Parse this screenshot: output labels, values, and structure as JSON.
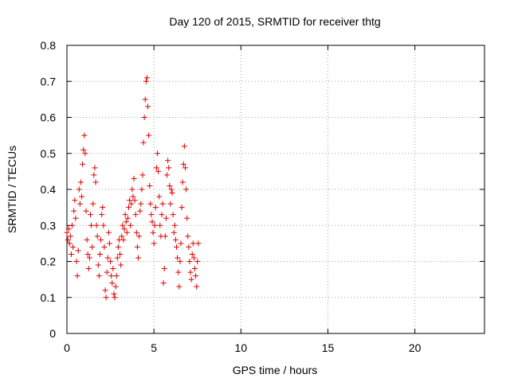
{
  "chart_data": {
    "type": "scatter",
    "title": "Day 120 of 2015, SRMTID for receiver thtg",
    "xlabel": "GPS time / hours",
    "ylabel": "SRMTID / TECUs",
    "xlim": [
      0,
      24
    ],
    "ylim": [
      0,
      0.8
    ],
    "xticks": [
      0,
      5,
      10,
      15,
      20
    ],
    "xtick_labels": [
      "0",
      "5",
      "10",
      "15",
      "20"
    ],
    "yticks": [
      0,
      0.1,
      0.2,
      0.3,
      0.4,
      0.5,
      0.6,
      0.7,
      0.8
    ],
    "ytick_labels": [
      "0",
      "0.1",
      "0.2",
      "0.3",
      "0.4",
      "0.5",
      "0.6",
      "0.7",
      "0.8"
    ],
    "grid": true,
    "marker": "+",
    "color": "#e00000",
    "series": [
      {
        "name": "SRMTID",
        "points": [
          [
            0.0,
            0.28
          ],
          [
            0.05,
            0.26
          ],
          [
            0.1,
            0.29
          ],
          [
            0.15,
            0.25
          ],
          [
            0.2,
            0.27
          ],
          [
            0.25,
            0.22
          ],
          [
            0.3,
            0.3
          ],
          [
            0.35,
            0.24
          ],
          [
            0.4,
            0.34
          ],
          [
            0.45,
            0.37
          ],
          [
            0.5,
            0.32
          ],
          [
            0.55,
            0.2
          ],
          [
            0.6,
            0.16
          ],
          [
            0.65,
            0.23
          ],
          [
            0.7,
            0.4
          ],
          [
            0.75,
            0.36
          ],
          [
            0.8,
            0.42
          ],
          [
            0.85,
            0.38
          ],
          [
            0.9,
            0.47
          ],
          [
            0.95,
            0.51
          ],
          [
            1.0,
            0.55
          ],
          [
            1.05,
            0.5
          ],
          [
            1.1,
            0.34
          ],
          [
            1.15,
            0.26
          ],
          [
            1.2,
            0.22
          ],
          [
            1.25,
            0.18
          ],
          [
            1.3,
            0.21
          ],
          [
            1.35,
            0.33
          ],
          [
            1.4,
            0.3
          ],
          [
            1.45,
            0.24
          ],
          [
            1.5,
            0.36
          ],
          [
            1.55,
            0.44
          ],
          [
            1.6,
            0.46
          ],
          [
            1.65,
            0.42
          ],
          [
            1.7,
            0.3
          ],
          [
            1.75,
            0.27
          ],
          [
            1.8,
            0.19
          ],
          [
            1.85,
            0.16
          ],
          [
            1.9,
            0.22
          ],
          [
            1.95,
            0.26
          ],
          [
            2.0,
            0.33
          ],
          [
            2.05,
            0.35
          ],
          [
            2.1,
            0.3
          ],
          [
            2.15,
            0.24
          ],
          [
            2.2,
            0.12
          ],
          [
            2.25,
            0.1
          ],
          [
            2.3,
            0.17
          ],
          [
            2.35,
            0.21
          ],
          [
            2.4,
            0.28
          ],
          [
            2.45,
            0.25
          ],
          [
            2.5,
            0.2
          ],
          [
            2.55,
            0.16
          ],
          [
            2.6,
            0.14
          ],
          [
            2.65,
            0.18
          ],
          [
            2.7,
            0.11
          ],
          [
            2.75,
            0.1
          ],
          [
            2.8,
            0.13
          ],
          [
            2.85,
            0.16
          ],
          [
            2.9,
            0.21
          ],
          [
            2.95,
            0.24
          ],
          [
            3.0,
            0.26
          ],
          [
            3.05,
            0.22
          ],
          [
            3.1,
            0.19
          ],
          [
            3.15,
            0.27
          ],
          [
            3.2,
            0.3
          ],
          [
            3.25,
            0.26
          ],
          [
            3.3,
            0.29
          ],
          [
            3.35,
            0.33
          ],
          [
            3.4,
            0.31
          ],
          [
            3.45,
            0.28
          ],
          [
            3.5,
            0.32
          ],
          [
            3.55,
            0.35
          ],
          [
            3.6,
            0.37
          ],
          [
            3.65,
            0.3
          ],
          [
            3.7,
            0.36
          ],
          [
            3.75,
            0.4
          ],
          [
            3.8,
            0.38
          ],
          [
            3.85,
            0.43
          ],
          [
            3.9,
            0.37
          ],
          [
            3.95,
            0.33
          ],
          [
            4.0,
            0.28
          ],
          [
            4.05,
            0.24
          ],
          [
            4.1,
            0.21
          ],
          [
            4.15,
            0.27
          ],
          [
            4.2,
            0.34
          ],
          [
            4.25,
            0.36
          ],
          [
            4.3,
            0.4
          ],
          [
            4.35,
            0.44
          ],
          [
            4.4,
            0.53
          ],
          [
            4.45,
            0.6
          ],
          [
            4.5,
            0.65
          ],
          [
            4.55,
            0.7
          ],
          [
            4.6,
            0.71
          ],
          [
            4.65,
            0.63
          ],
          [
            4.7,
            0.55
          ],
          [
            4.75,
            0.41
          ],
          [
            4.8,
            0.36
          ],
          [
            4.85,
            0.33
          ],
          [
            4.9,
            0.31
          ],
          [
            4.95,
            0.28
          ],
          [
            5.0,
            0.25
          ],
          [
            5.05,
            0.3
          ],
          [
            5.1,
            0.35
          ],
          [
            5.15,
            0.46
          ],
          [
            5.2,
            0.5
          ],
          [
            5.25,
            0.45
          ],
          [
            5.3,
            0.38
          ],
          [
            5.35,
            0.3
          ],
          [
            5.4,
            0.27
          ],
          [
            5.45,
            0.33
          ],
          [
            5.5,
            0.36
          ],
          [
            5.55,
            0.14
          ],
          [
            5.6,
            0.18
          ],
          [
            5.65,
            0.27
          ],
          [
            5.7,
            0.32
          ],
          [
            5.75,
            0.44
          ],
          [
            5.8,
            0.48
          ],
          [
            5.85,
            0.46
          ],
          [
            5.9,
            0.41
          ],
          [
            5.95,
            0.36
          ],
          [
            6.0,
            0.4
          ],
          [
            6.05,
            0.39
          ],
          [
            6.1,
            0.33
          ],
          [
            6.15,
            0.28
          ],
          [
            6.2,
            0.3
          ],
          [
            6.25,
            0.26
          ],
          [
            6.3,
            0.24
          ],
          [
            6.35,
            0.21
          ],
          [
            6.4,
            0.17
          ],
          [
            6.45,
            0.13
          ],
          [
            6.5,
            0.2
          ],
          [
            6.55,
            0.25
          ],
          [
            6.6,
            0.35
          ],
          [
            6.65,
            0.42
          ],
          [
            6.7,
            0.47
          ],
          [
            6.75,
            0.52
          ],
          [
            6.8,
            0.46
          ],
          [
            6.85,
            0.4
          ],
          [
            6.9,
            0.32
          ],
          [
            6.95,
            0.27
          ],
          [
            7.0,
            0.24
          ],
          [
            7.05,
            0.2
          ],
          [
            7.1,
            0.17
          ],
          [
            7.15,
            0.15
          ],
          [
            7.2,
            0.22
          ],
          [
            7.25,
            0.25
          ],
          [
            7.3,
            0.21
          ],
          [
            7.35,
            0.18
          ],
          [
            7.4,
            0.16
          ],
          [
            7.45,
            0.13
          ],
          [
            7.5,
            0.2
          ],
          [
            7.55,
            0.25
          ]
        ]
      }
    ]
  }
}
